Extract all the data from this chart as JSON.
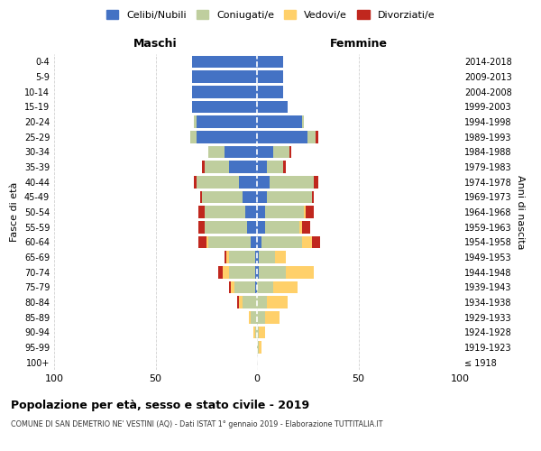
{
  "age_groups": [
    "100+",
    "95-99",
    "90-94",
    "85-89",
    "80-84",
    "75-79",
    "70-74",
    "65-69",
    "60-64",
    "55-59",
    "50-54",
    "45-49",
    "40-44",
    "35-39",
    "30-34",
    "25-29",
    "20-24",
    "15-19",
    "10-14",
    "5-9",
    "0-4"
  ],
  "birth_years": [
    "≤ 1918",
    "1919-1923",
    "1924-1928",
    "1929-1933",
    "1934-1938",
    "1939-1943",
    "1944-1948",
    "1949-1953",
    "1954-1958",
    "1959-1963",
    "1964-1968",
    "1969-1973",
    "1974-1978",
    "1979-1983",
    "1984-1988",
    "1989-1993",
    "1994-1998",
    "1999-2003",
    "2004-2008",
    "2009-2013",
    "2014-2018"
  ],
  "males": {
    "celibi": [
      0,
      0,
      0,
      0,
      0,
      1,
      1,
      1,
      3,
      5,
      6,
      7,
      9,
      14,
      16,
      30,
      30,
      32,
      32,
      32,
      32
    ],
    "coniugati": [
      0,
      0,
      1,
      3,
      7,
      10,
      13,
      13,
      21,
      21,
      20,
      20,
      21,
      12,
      8,
      3,
      1,
      0,
      0,
      0,
      0
    ],
    "vedovi": [
      0,
      0,
      1,
      1,
      2,
      2,
      3,
      1,
      1,
      0,
      0,
      0,
      0,
      0,
      0,
      0,
      0,
      0,
      0,
      0,
      0
    ],
    "divorziati": [
      0,
      0,
      0,
      0,
      1,
      1,
      2,
      1,
      4,
      3,
      3,
      1,
      1,
      1,
      0,
      0,
      0,
      0,
      0,
      0,
      0
    ]
  },
  "females": {
    "nubili": [
      0,
      0,
      0,
      0,
      0,
      0,
      1,
      1,
      2,
      4,
      4,
      5,
      6,
      5,
      8,
      25,
      22,
      15,
      13,
      13,
      13
    ],
    "coniugate": [
      0,
      1,
      1,
      4,
      5,
      8,
      13,
      8,
      20,
      17,
      19,
      22,
      22,
      8,
      8,
      4,
      1,
      0,
      0,
      0,
      0
    ],
    "vedove": [
      0,
      1,
      3,
      7,
      10,
      12,
      14,
      5,
      5,
      1,
      1,
      0,
      0,
      0,
      0,
      0,
      0,
      0,
      0,
      0,
      0
    ],
    "divorziate": [
      0,
      0,
      0,
      0,
      0,
      0,
      0,
      0,
      4,
      4,
      4,
      1,
      2,
      1,
      1,
      1,
      0,
      0,
      0,
      0,
      0
    ]
  },
  "colors": {
    "celibi_nubili": "#4472C4",
    "coniugati": "#BFCE9E",
    "vedovi": "#FFD06A",
    "divorziati": "#C0271E"
  },
  "xlim": 100,
  "title": "Popolazione per età, sesso e stato civile - 2019",
  "subtitle": "COMUNE DI SAN DEMETRIO NE' VESTINI (AQ) - Dati ISTAT 1° gennaio 2019 - Elaborazione TUTTITALIA.IT",
  "xlabel_left": "Maschi",
  "xlabel_right": "Femmine",
  "ylabel_left": "Fasce di età",
  "ylabel_right": "Anni di nascita",
  "legend_labels": [
    "Celibi/Nubili",
    "Coniugati/e",
    "Vedovi/e",
    "Divorziati/e"
  ],
  "bg_color": "#FFFFFF",
  "grid_color": "#CCCCCC"
}
